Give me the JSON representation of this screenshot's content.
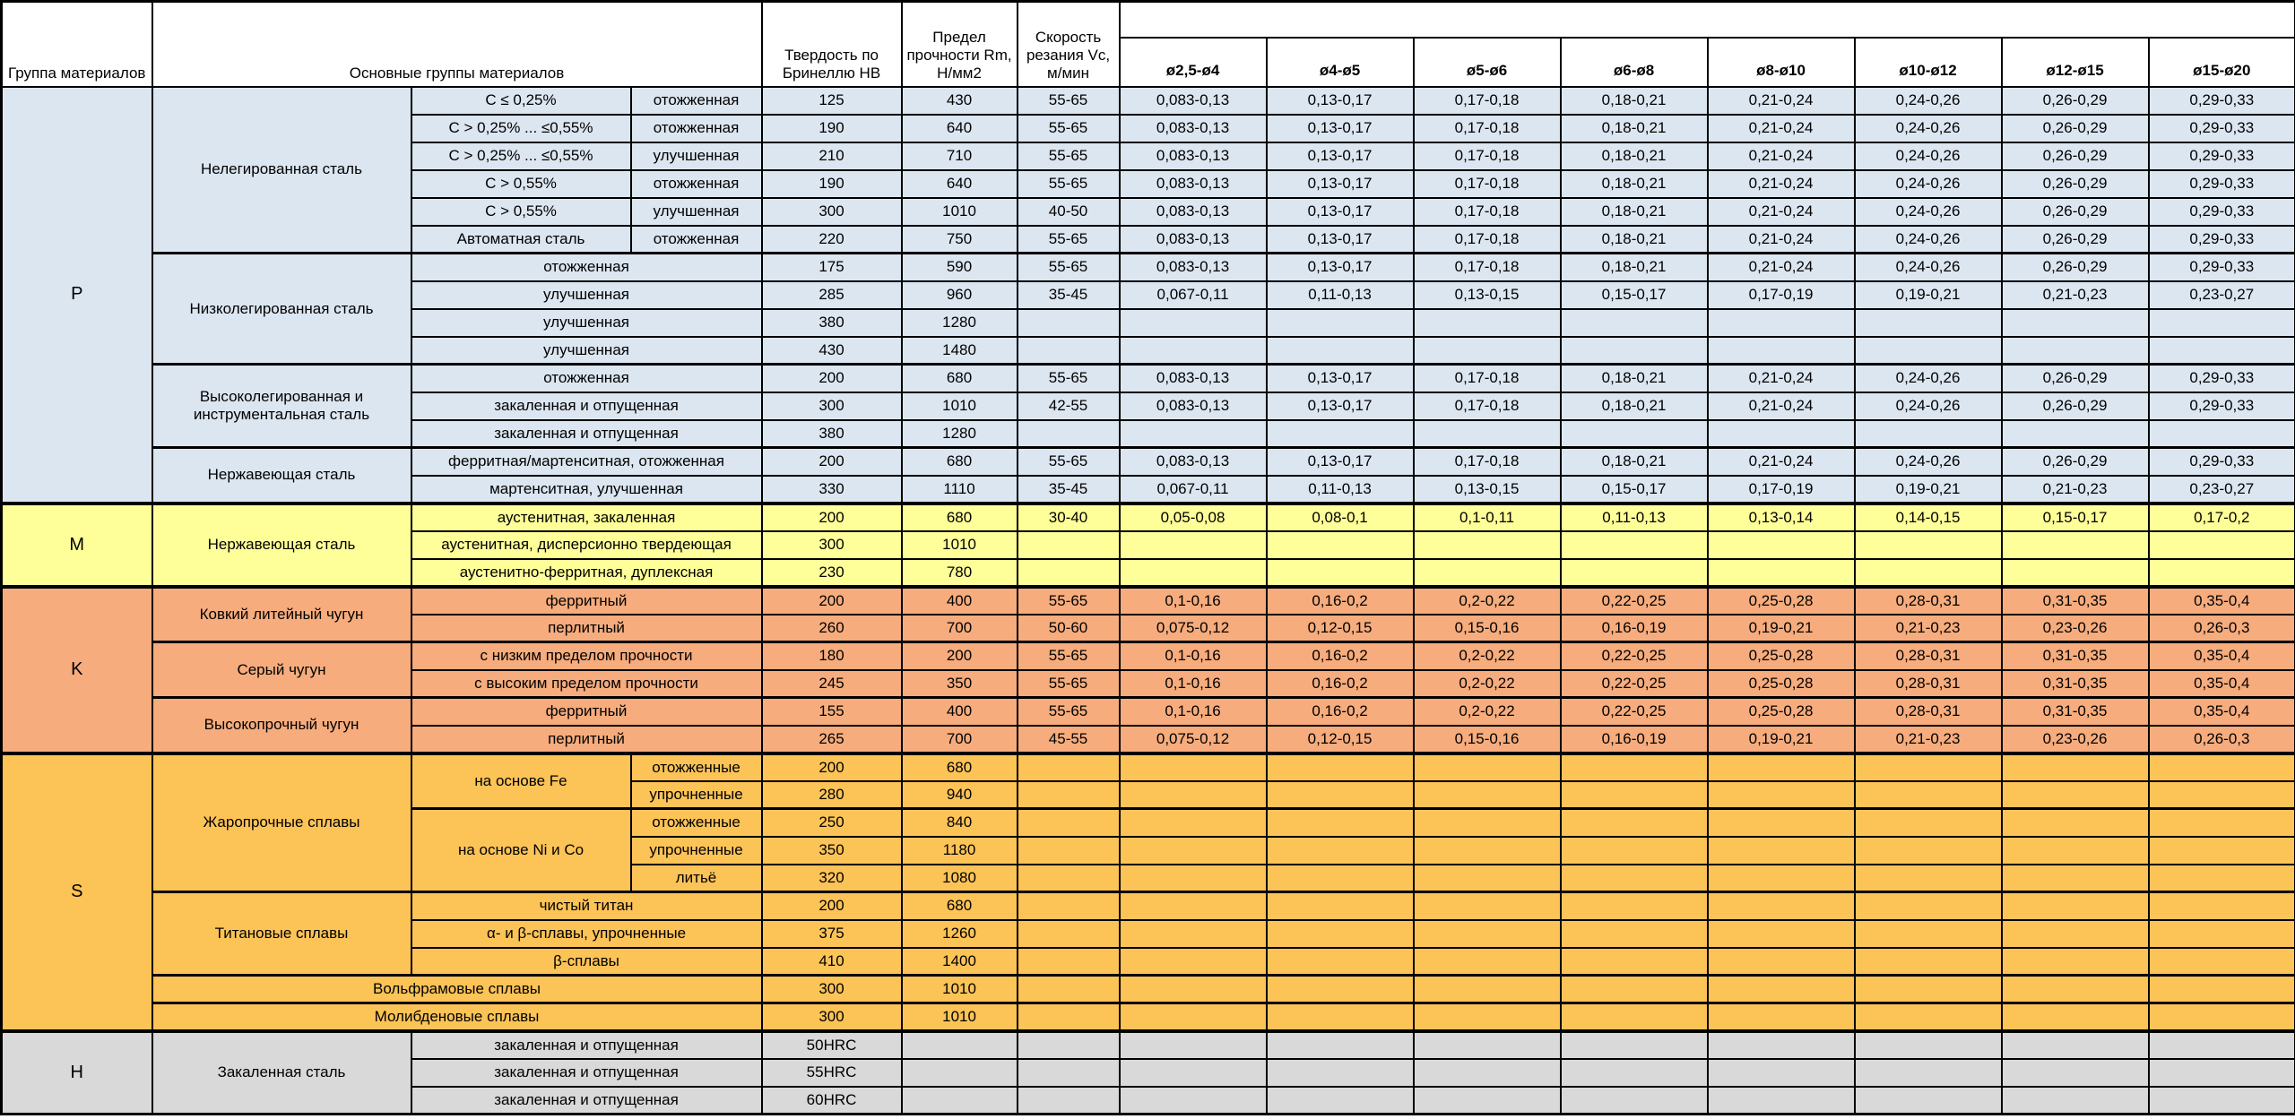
{
  "table": {
    "header": {
      "col_group": "Группа материалов",
      "col_main": "Основные группы материалов",
      "col_hardness": "Твердость по Бринеллю HB",
      "col_strength": "Предел прочности Rm, Н/мм2",
      "col_speed": "Скорость резания Vc, м/мин",
      "diameters": [
        "ø2,5-ø4",
        "ø4-ø5",
        "ø5-ø6",
        "ø6-ø8",
        "ø8-ø10",
        "ø10-ø12",
        "ø12-ø15",
        "ø15-ø20"
      ]
    },
    "group_colors": {
      "P": "#dce6f1",
      "M": "#ffff99",
      "K": "#f6ac7d",
      "S": "#fcc357",
      "H": "#d9d9d9"
    },
    "rows": [
      {
        "g": "P",
        "letter": {
          "t": "P",
          "rs": 15
        },
        "l1": {
          "t": "Нелегированная сталь",
          "rs": 6
        },
        "l2": {
          "t": "C ≤ 0,25%"
        },
        "l3": {
          "t": "отожженная"
        },
        "hb": "125",
        "rm": "430",
        "vc": "55-65",
        "feeds": [
          "0,083-0,13",
          "0,13-0,17",
          "0,17-0,18",
          "0,18-0,21",
          "0,21-0,24",
          "0,24-0,26",
          "0,26-0,29",
          "0,29-0,33"
        ]
      },
      {
        "g": "P",
        "l2": {
          "t": "C > 0,25% ... ≤0,55%"
        },
        "l3": {
          "t": "отожженная"
        },
        "hb": "190",
        "rm": "640",
        "vc": "55-65",
        "feeds": [
          "0,083-0,13",
          "0,13-0,17",
          "0,17-0,18",
          "0,18-0,21",
          "0,21-0,24",
          "0,24-0,26",
          "0,26-0,29",
          "0,29-0,33"
        ]
      },
      {
        "g": "P",
        "l2": {
          "t": "C > 0,25% ... ≤0,55%"
        },
        "l3": {
          "t": "улучшенная"
        },
        "hb": "210",
        "rm": "710",
        "vc": "55-65",
        "feeds": [
          "0,083-0,13",
          "0,13-0,17",
          "0,17-0,18",
          "0,18-0,21",
          "0,21-0,24",
          "0,24-0,26",
          "0,26-0,29",
          "0,29-0,33"
        ]
      },
      {
        "g": "P",
        "l2": {
          "t": "C > 0,55%"
        },
        "l3": {
          "t": "отожженная"
        },
        "hb": "190",
        "rm": "640",
        "vc": "55-65",
        "feeds": [
          "0,083-0,13",
          "0,13-0,17",
          "0,17-0,18",
          "0,18-0,21",
          "0,21-0,24",
          "0,24-0,26",
          "0,26-0,29",
          "0,29-0,33"
        ]
      },
      {
        "g": "P",
        "l2": {
          "t": "C > 0,55%"
        },
        "l3": {
          "t": "улучшенная"
        },
        "hb": "300",
        "rm": "1010",
        "vc": "40-50",
        "feeds": [
          "0,083-0,13",
          "0,13-0,17",
          "0,17-0,18",
          "0,18-0,21",
          "0,21-0,24",
          "0,24-0,26",
          "0,26-0,29",
          "0,29-0,33"
        ]
      },
      {
        "g": "P",
        "l2": {
          "t": "Автоматная сталь"
        },
        "l3": {
          "t": "отожженная"
        },
        "hb": "220",
        "rm": "750",
        "vc": "55-65",
        "feeds": [
          "0,083-0,13",
          "0,13-0,17",
          "0,17-0,18",
          "0,18-0,21",
          "0,21-0,24",
          "0,24-0,26",
          "0,26-0,29",
          "0,29-0,33"
        ]
      },
      {
        "g": "P",
        "sep": "sub",
        "l1": {
          "t": "Низколегированная сталь",
          "rs": 4
        },
        "l2": {
          "t": "отожженная",
          "cs": 2
        },
        "hb": "175",
        "rm": "590",
        "vc": "55-65",
        "feeds": [
          "0,083-0,13",
          "0,13-0,17",
          "0,17-0,18",
          "0,18-0,21",
          "0,21-0,24",
          "0,24-0,26",
          "0,26-0,29",
          "0,29-0,33"
        ]
      },
      {
        "g": "P",
        "l2": {
          "t": "улучшенная",
          "cs": 2
        },
        "hb": "285",
        "rm": "960",
        "vc": "35-45",
        "feeds": [
          "0,067-0,11",
          "0,11-0,13",
          "0,13-0,15",
          "0,15-0,17",
          "0,17-0,19",
          "0,19-0,21",
          "0,21-0,23",
          "0,23-0,27"
        ]
      },
      {
        "g": "P",
        "l2": {
          "t": "улучшенная",
          "cs": 2
        },
        "hb": "380",
        "rm": "1280",
        "vc": "",
        "feeds": [
          "",
          "",
          "",
          "",
          "",
          "",
          "",
          ""
        ]
      },
      {
        "g": "P",
        "l2": {
          "t": "улучшенная",
          "cs": 2
        },
        "hb": "430",
        "rm": "1480",
        "vc": "",
        "feeds": [
          "",
          "",
          "",
          "",
          "",
          "",
          "",
          ""
        ]
      },
      {
        "g": "P",
        "sep": "sub",
        "l1": {
          "t": "Высоколегированная и инструментальная сталь",
          "rs": 3
        },
        "l2": {
          "t": "отожженная",
          "cs": 2
        },
        "hb": "200",
        "rm": "680",
        "vc": "55-65",
        "feeds": [
          "0,083-0,13",
          "0,13-0,17",
          "0,17-0,18",
          "0,18-0,21",
          "0,21-0,24",
          "0,24-0,26",
          "0,26-0,29",
          "0,29-0,33"
        ]
      },
      {
        "g": "P",
        "l2": {
          "t": "закаленная и отпущенная",
          "cs": 2
        },
        "hb": "300",
        "rm": "1010",
        "vc": "42-55",
        "feeds": [
          "0,083-0,13",
          "0,13-0,17",
          "0,17-0,18",
          "0,18-0,21",
          "0,21-0,24",
          "0,24-0,26",
          "0,26-0,29",
          "0,29-0,33"
        ]
      },
      {
        "g": "P",
        "l2": {
          "t": "закаленная и отпущенная",
          "cs": 2
        },
        "hb": "380",
        "rm": "1280",
        "vc": "",
        "feeds": [
          "",
          "",
          "",
          "",
          "",
          "",
          "",
          ""
        ]
      },
      {
        "g": "P",
        "sep": "sub",
        "l1": {
          "t": "Нержавеющая сталь",
          "rs": 2
        },
        "l2": {
          "t": "ферритная/мартенситная, отожженная",
          "cs": 2
        },
        "hb": "200",
        "rm": "680",
        "vc": "55-65",
        "feeds": [
          "0,083-0,13",
          "0,13-0,17",
          "0,17-0,18",
          "0,18-0,21",
          "0,21-0,24",
          "0,24-0,26",
          "0,26-0,29",
          "0,29-0,33"
        ]
      },
      {
        "g": "P",
        "l2": {
          "t": "мартенситная, улучшенная",
          "cs": 2
        },
        "hb": "330",
        "rm": "1110",
        "vc": "35-45",
        "feeds": [
          "0,067-0,11",
          "0,11-0,13",
          "0,13-0,15",
          "0,15-0,17",
          "0,17-0,19",
          "0,19-0,21",
          "0,21-0,23",
          "0,23-0,27"
        ]
      },
      {
        "g": "M",
        "sep": "grp",
        "letter": {
          "t": "M",
          "rs": 3
        },
        "l1": {
          "t": "Нержавеющая сталь",
          "rs": 3
        },
        "l2": {
          "t": "аустенитная, закаленная",
          "cs": 2
        },
        "hb": "200",
        "rm": "680",
        "vc": "30-40",
        "feeds": [
          "0,05-0,08",
          "0,08-0,1",
          "0,1-0,11",
          "0,11-0,13",
          "0,13-0,14",
          "0,14-0,15",
          "0,15-0,17",
          "0,17-0,2"
        ]
      },
      {
        "g": "M",
        "l2": {
          "t": "аустенитная, дисперсионно твердеющая",
          "cs": 2
        },
        "hb": "300",
        "rm": "1010",
        "vc": "",
        "feeds": [
          "",
          "",
          "",
          "",
          "",
          "",
          "",
          ""
        ]
      },
      {
        "g": "M",
        "l2": {
          "t": "аустенитно-ферритная, дуплексная",
          "cs": 2
        },
        "hb": "230",
        "rm": "780",
        "vc": "",
        "feeds": [
          "",
          "",
          "",
          "",
          "",
          "",
          "",
          ""
        ]
      },
      {
        "g": "K",
        "sep": "grp",
        "letter": {
          "t": "K",
          "rs": 6
        },
        "l1": {
          "t": "Ковкий литейный чугун",
          "rs": 2
        },
        "l2": {
          "t": "ферритный",
          "cs": 2
        },
        "hb": "200",
        "rm": "400",
        "vc": "55-65",
        "feeds": [
          "0,1-0,16",
          "0,16-0,2",
          "0,2-0,22",
          "0,22-0,25",
          "0,25-0,28",
          "0,28-0,31",
          "0,31-0,35",
          "0,35-0,4"
        ]
      },
      {
        "g": "K",
        "l2": {
          "t": "перлитный",
          "cs": 2
        },
        "hb": "260",
        "rm": "700",
        "vc": "50-60",
        "feeds": [
          "0,075-0,12",
          "0,12-0,15",
          "0,15-0,16",
          "0,16-0,19",
          "0,19-0,21",
          "0,21-0,23",
          "0,23-0,26",
          "0,26-0,3"
        ]
      },
      {
        "g": "K",
        "sep": "sub",
        "l1": {
          "t": "Серый чугун",
          "rs": 2
        },
        "l2": {
          "t": "с низким пределом прочности",
          "cs": 2
        },
        "hb": "180",
        "rm": "200",
        "vc": "55-65",
        "feeds": [
          "0,1-0,16",
          "0,16-0,2",
          "0,2-0,22",
          "0,22-0,25",
          "0,25-0,28",
          "0,28-0,31",
          "0,31-0,35",
          "0,35-0,4"
        ]
      },
      {
        "g": "K",
        "l2": {
          "t": "с высоким пределом прочности",
          "cs": 2
        },
        "hb": "245",
        "rm": "350",
        "vc": "55-65",
        "feeds": [
          "0,1-0,16",
          "0,16-0,2",
          "0,2-0,22",
          "0,22-0,25",
          "0,25-0,28",
          "0,28-0,31",
          "0,31-0,35",
          "0,35-0,4"
        ]
      },
      {
        "g": "K",
        "sep": "sub",
        "l1": {
          "t": "Высокопрочный чугун",
          "rs": 2
        },
        "l2": {
          "t": "ферритный",
          "cs": 2
        },
        "hb": "155",
        "rm": "400",
        "vc": "55-65",
        "feeds": [
          "0,1-0,16",
          "0,16-0,2",
          "0,2-0,22",
          "0,22-0,25",
          "0,25-0,28",
          "0,28-0,31",
          "0,31-0,35",
          "0,35-0,4"
        ]
      },
      {
        "g": "K",
        "l2": {
          "t": "перлитный",
          "cs": 2
        },
        "hb": "265",
        "rm": "700",
        "vc": "45-55",
        "feeds": [
          "0,075-0,12",
          "0,12-0,15",
          "0,15-0,16",
          "0,16-0,19",
          "0,19-0,21",
          "0,21-0,23",
          "0,23-0,26",
          "0,26-0,3"
        ]
      },
      {
        "g": "S",
        "sep": "grp",
        "letter": {
          "t": "S",
          "rs": 10
        },
        "l1": {
          "t": "Жаропрочные сплавы",
          "rs": 5
        },
        "l2": {
          "t": "на основе Fe",
          "rs": 2
        },
        "l3": {
          "t": "отожженные"
        },
        "hb": "200",
        "rm": "680",
        "vc": "",
        "feeds": [
          "",
          "",
          "",
          "",
          "",
          "",
          "",
          ""
        ]
      },
      {
        "g": "S",
        "l3": {
          "t": "упрочненные"
        },
        "hb": "280",
        "rm": "940",
        "vc": "",
        "feeds": [
          "",
          "",
          "",
          "",
          "",
          "",
          "",
          ""
        ]
      },
      {
        "g": "S",
        "sep": "sub",
        "l2": {
          "t": "на основе Ni и Co",
          "rs": 3
        },
        "l3": {
          "t": "отожженные"
        },
        "hb": "250",
        "rm": "840",
        "vc": "",
        "feeds": [
          "",
          "",
          "",
          "",
          "",
          "",
          "",
          ""
        ]
      },
      {
        "g": "S",
        "l3": {
          "t": "упрочненные"
        },
        "hb": "350",
        "rm": "1180",
        "vc": "",
        "feeds": [
          "",
          "",
          "",
          "",
          "",
          "",
          "",
          ""
        ]
      },
      {
        "g": "S",
        "l3": {
          "t": "литьё"
        },
        "hb": "320",
        "rm": "1080",
        "vc": "",
        "feeds": [
          "",
          "",
          "",
          "",
          "",
          "",
          "",
          ""
        ]
      },
      {
        "g": "S",
        "sep": "sub",
        "l1": {
          "t": "Титановые сплавы",
          "rs": 3
        },
        "l2": {
          "t": "чистый титан",
          "cs": 2
        },
        "hb": "200",
        "rm": "680",
        "vc": "",
        "feeds": [
          "",
          "",
          "",
          "",
          "",
          "",
          "",
          ""
        ]
      },
      {
        "g": "S",
        "l2": {
          "t": "α- и β-сплавы, упрочненные",
          "cs": 2
        },
        "hb": "375",
        "rm": "1260",
        "vc": "",
        "feeds": [
          "",
          "",
          "",
          "",
          "",
          "",
          "",
          ""
        ]
      },
      {
        "g": "S",
        "l2": {
          "t": "β-сплавы",
          "cs": 2
        },
        "hb": "410",
        "rm": "1400",
        "vc": "",
        "feeds": [
          "",
          "",
          "",
          "",
          "",
          "",
          "",
          ""
        ]
      },
      {
        "g": "S",
        "sep": "sub",
        "l1": {
          "t": "Вольфрамовые сплавы",
          "cs": 3
        },
        "hb": "300",
        "rm": "1010",
        "vc": "",
        "feeds": [
          "",
          "",
          "",
          "",
          "",
          "",
          "",
          ""
        ]
      },
      {
        "g": "S",
        "sep": "sub",
        "l1": {
          "t": "Молибденовые сплавы",
          "cs": 3
        },
        "hb": "300",
        "rm": "1010",
        "vc": "",
        "feeds": [
          "",
          "",
          "",
          "",
          "",
          "",
          "",
          ""
        ]
      },
      {
        "g": "H",
        "sep": "grp",
        "letter": {
          "t": "H",
          "rs": 3
        },
        "l1": {
          "t": "Закаленная сталь",
          "rs": 3
        },
        "l2": {
          "t": "закаленная и отпущенная",
          "cs": 2
        },
        "hb": "50HRC",
        "rm": "",
        "vc": "",
        "feeds": [
          "",
          "",
          "",
          "",
          "",
          "",
          "",
          ""
        ]
      },
      {
        "g": "H",
        "l2": {
          "t": "закаленная и отпущенная",
          "cs": 2
        },
        "hb": "55HRC",
        "rm": "",
        "vc": "",
        "feeds": [
          "",
          "",
          "",
          "",
          "",
          "",
          "",
          ""
        ]
      },
      {
        "g": "H",
        "l2": {
          "t": "закаленная и отпущенная",
          "cs": 2
        },
        "hb": "60HRC",
        "rm": "",
        "vc": "",
        "feeds": [
          "",
          "",
          "",
          "",
          "",
          "",
          "",
          ""
        ]
      }
    ]
  }
}
